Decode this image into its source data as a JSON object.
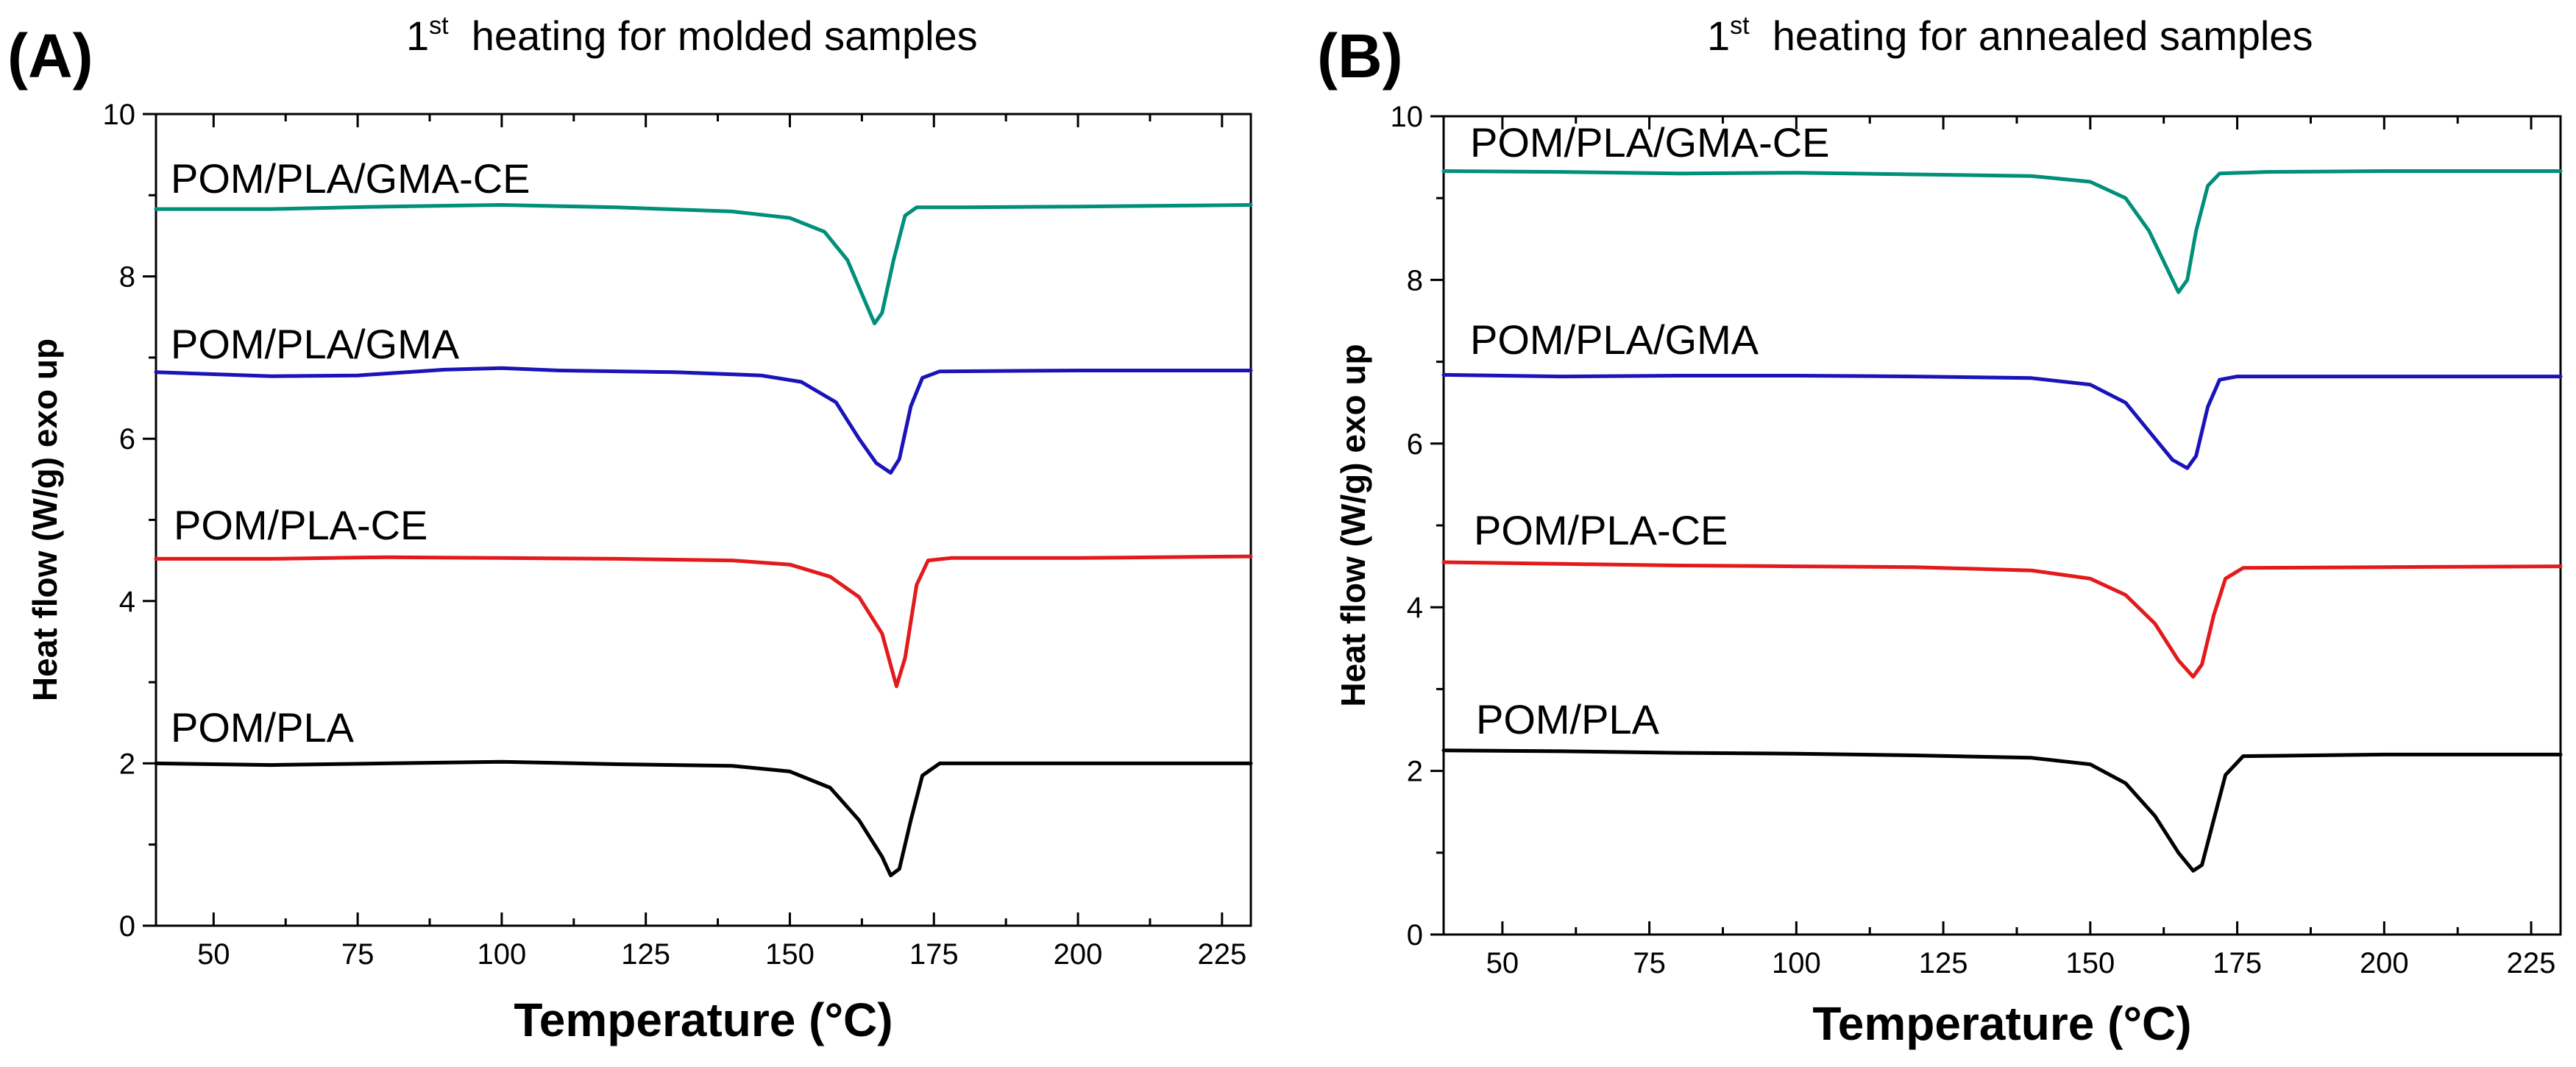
{
  "chart_data": [
    {
      "panel": "(A)",
      "type": "line",
      "title": {
        "main": "1",
        "sup": "st",
        "rest": "heating for molded samples"
      },
      "xlabel": "Temperature (°C)",
      "ylabel": "Heat flow (W/g) exo up",
      "xlim": [
        40,
        230
      ],
      "ylim": [
        0,
        10
      ],
      "xticks": [
        50,
        75,
        100,
        125,
        150,
        175,
        200,
        225
      ],
      "yticks": [
        0,
        2,
        4,
        6,
        8,
        10
      ],
      "series": [
        {
          "name": "POM/PLA/GMA-CE",
          "color": "#008F7A",
          "points": [
            [
              40,
              8.83
            ],
            [
              60,
              8.83
            ],
            [
              80,
              8.86
            ],
            [
              100,
              8.88
            ],
            [
              120,
              8.85
            ],
            [
              140,
              8.8
            ],
            [
              150,
              8.72
            ],
            [
              156,
              8.55
            ],
            [
              160,
              8.2
            ],
            [
              163,
              7.7
            ],
            [
              164.7,
              7.42
            ],
            [
              166,
              7.55
            ],
            [
              168,
              8.2
            ],
            [
              170,
              8.75
            ],
            [
              172,
              8.85
            ],
            [
              180,
              8.85
            ],
            [
              200,
              8.86
            ],
            [
              230,
              8.88
            ]
          ]
        },
        {
          "name": "POM/PLA/GMA",
          "color": "#1A14B8",
          "points": [
            [
              40,
              6.82
            ],
            [
              60,
              6.77
            ],
            [
              75,
              6.78
            ],
            [
              90,
              6.85
            ],
            [
              100,
              6.87
            ],
            [
              110,
              6.84
            ],
            [
              130,
              6.82
            ],
            [
              145,
              6.78
            ],
            [
              152,
              6.7
            ],
            [
              158,
              6.45
            ],
            [
              162,
              6.0
            ],
            [
              165,
              5.7
            ],
            [
              167.5,
              5.58
            ],
            [
              169,
              5.75
            ],
            [
              171,
              6.4
            ],
            [
              173,
              6.75
            ],
            [
              176,
              6.83
            ],
            [
              200,
              6.84
            ],
            [
              230,
              6.84
            ]
          ]
        },
        {
          "name": "POM/PLA-CE",
          "color": "#E31A1C",
          "points": [
            [
              40,
              4.52
            ],
            [
              60,
              4.52
            ],
            [
              80,
              4.54
            ],
            [
              100,
              4.53
            ],
            [
              120,
              4.52
            ],
            [
              140,
              4.5
            ],
            [
              150,
              4.45
            ],
            [
              157,
              4.3
            ],
            [
              162,
              4.05
            ],
            [
              166,
              3.6
            ],
            [
              168.5,
              2.95
            ],
            [
              170,
              3.3
            ],
            [
              172,
              4.2
            ],
            [
              174,
              4.5
            ],
            [
              178,
              4.53
            ],
            [
              200,
              4.53
            ],
            [
              230,
              4.55
            ]
          ]
        },
        {
          "name": "POM/PLA",
          "color": "#000000",
          "points": [
            [
              40,
              2.0
            ],
            [
              60,
              1.98
            ],
            [
              80,
              2.0
            ],
            [
              100,
              2.02
            ],
            [
              120,
              1.99
            ],
            [
              140,
              1.97
            ],
            [
              150,
              1.9
            ],
            [
              157,
              1.7
            ],
            [
              162,
              1.3
            ],
            [
              166,
              0.85
            ],
            [
              167.5,
              0.62
            ],
            [
              169,
              0.7
            ],
            [
              171,
              1.3
            ],
            [
              173,
              1.85
            ],
            [
              176,
              2.0
            ],
            [
              200,
              2.0
            ],
            [
              230,
              2.0
            ]
          ]
        }
      ]
    },
    {
      "panel": "(B)",
      "type": "line",
      "title": {
        "main": "1",
        "sup": "st",
        "rest": "heating for annealed samples"
      },
      "xlabel": "Temperature (°C)",
      "ylabel": "Heat flow (W/g) exo up",
      "xlim": [
        40,
        230
      ],
      "ylim": [
        0,
        10
      ],
      "xticks": [
        50,
        75,
        100,
        125,
        150,
        175,
        200,
        225
      ],
      "yticks": [
        0,
        2,
        4,
        6,
        8,
        10
      ],
      "series": [
        {
          "name": "POM/PLA/GMA-CE",
          "color": "#008F7A",
          "points": [
            [
              40,
              9.33
            ],
            [
              60,
              9.32
            ],
            [
              80,
              9.3
            ],
            [
              100,
              9.31
            ],
            [
              120,
              9.29
            ],
            [
              140,
              9.27
            ],
            [
              150,
              9.2
            ],
            [
              156,
              9.0
            ],
            [
              160,
              8.6
            ],
            [
              163,
              8.15
            ],
            [
              165,
              7.85
            ],
            [
              166.5,
              8.0
            ],
            [
              168,
              8.6
            ],
            [
              170,
              9.15
            ],
            [
              172,
              9.3
            ],
            [
              180,
              9.32
            ],
            [
              200,
              9.33
            ],
            [
              230,
              9.33
            ]
          ]
        },
        {
          "name": "POM/PLA/GMA",
          "color": "#1A14B8",
          "points": [
            [
              40,
              6.84
            ],
            [
              60,
              6.82
            ],
            [
              80,
              6.83
            ],
            [
              100,
              6.83
            ],
            [
              120,
              6.82
            ],
            [
              140,
              6.8
            ],
            [
              150,
              6.72
            ],
            [
              156,
              6.5
            ],
            [
              160,
              6.15
            ],
            [
              164,
              5.8
            ],
            [
              166.5,
              5.7
            ],
            [
              168,
              5.85
            ],
            [
              170,
              6.45
            ],
            [
              172,
              6.78
            ],
            [
              175,
              6.82
            ],
            [
              200,
              6.82
            ],
            [
              230,
              6.82
            ]
          ]
        },
        {
          "name": "POM/PLA-CE",
          "color": "#E31A1C",
          "points": [
            [
              40,
              4.55
            ],
            [
              60,
              4.53
            ],
            [
              80,
              4.51
            ],
            [
              100,
              4.5
            ],
            [
              120,
              4.49
            ],
            [
              140,
              4.45
            ],
            [
              150,
              4.35
            ],
            [
              156,
              4.15
            ],
            [
              161,
              3.8
            ],
            [
              165,
              3.35
            ],
            [
              167.5,
              3.15
            ],
            [
              169,
              3.3
            ],
            [
              171,
              3.9
            ],
            [
              173,
              4.35
            ],
            [
              176,
              4.48
            ],
            [
              200,
              4.49
            ],
            [
              230,
              4.5
            ]
          ]
        },
        {
          "name": "POM/PLA",
          "color": "#000000",
          "points": [
            [
              40,
              2.25
            ],
            [
              60,
              2.24
            ],
            [
              80,
              2.22
            ],
            [
              100,
              2.21
            ],
            [
              120,
              2.19
            ],
            [
              140,
              2.16
            ],
            [
              150,
              2.08
            ],
            [
              156,
              1.85
            ],
            [
              161,
              1.45
            ],
            [
              165,
              1.0
            ],
            [
              167.5,
              0.78
            ],
            [
              169,
              0.85
            ],
            [
              171,
              1.4
            ],
            [
              173,
              1.95
            ],
            [
              176,
              2.18
            ],
            [
              200,
              2.2
            ],
            [
              230,
              2.2
            ]
          ]
        }
      ]
    }
  ]
}
